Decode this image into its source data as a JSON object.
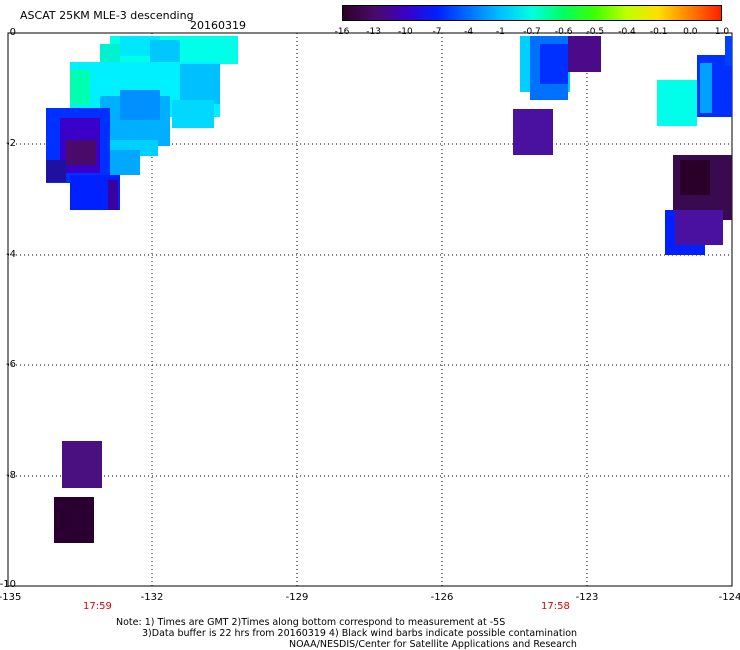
{
  "header": {
    "title": "ASCAT 25KM MLE-3 descending",
    "date": "20160319"
  },
  "colorbar": {
    "labels": [
      "-16",
      "-13",
      "-10",
      "-7",
      "-4",
      "-1",
      "-0.7",
      "-0.6",
      "-0.5",
      "-0.4",
      "-0.1",
      "0.0",
      "1.0"
    ],
    "colors": [
      "#2a0028",
      "#4a0a6a",
      "#3a00c8",
      "#0020ff",
      "#0070ff",
      "#00c0ff",
      "#00ffe0",
      "#00ff60",
      "#40ff00",
      "#c0ff00",
      "#ffe000",
      "#ff8000",
      "#ff2000"
    ]
  },
  "chart_data": {
    "type": "heatmap",
    "xlim": [
      -135,
      -124
    ],
    "ylim": [
      -10,
      0
    ],
    "x_ticks": [
      "-135",
      "-132",
      "-129",
      "-126",
      "-123",
      "-124"
    ],
    "y_ticks": [
      "0",
      "-2",
      "-4",
      "-6",
      "-8",
      "-10"
    ],
    "grid": true,
    "times": [
      "17:59",
      "17:58"
    ]
  },
  "notes": {
    "line1": "Note: 1) Times are GMT 2)Times along bottom correspond to measurement at -5S",
    "line2": "3)Data buffer is 22 hrs from 20160319 4) Black wind barbs indicate possible contamination",
    "line3": "NOAA/NESDIS/Center for Satellite Applications and Research"
  }
}
